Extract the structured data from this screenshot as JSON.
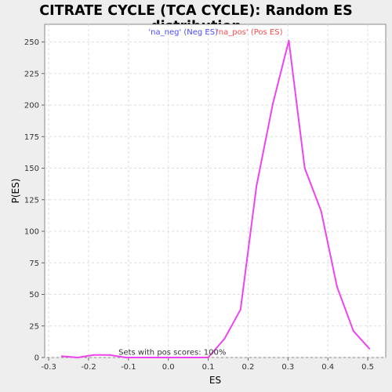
{
  "chart_data": {
    "type": "line",
    "title": "CITRATE CYCLE (TCA CYCLE): Random ES distribution",
    "xlabel": "ES",
    "ylabel": "P(ES)",
    "xlim": [
      -0.31,
      0.545
    ],
    "ylim": [
      0,
      264
    ],
    "x_ticks": [
      -0.3,
      -0.2,
      -0.1,
      0.0,
      0.1,
      0.2,
      0.3,
      0.4,
      0.5
    ],
    "x_tick_labels": [
      "-0.3",
      "-0.2",
      "-0.1",
      "0.0",
      "0.1",
      "0.2",
      "0.3",
      "0.4",
      "0.5"
    ],
    "y_ticks": [
      0,
      25,
      50,
      75,
      100,
      125,
      150,
      175,
      200,
      225,
      250
    ],
    "y_tick_labels": [
      "0",
      "25",
      "50",
      "75",
      "100",
      "125",
      "150",
      "175",
      "200",
      "225",
      "250"
    ],
    "grid": true,
    "legend_placement": "top-center",
    "series": [
      {
        "name": "'na_neg' (Neg ES)",
        "color": "#4a4aff",
        "x": [],
        "y": []
      },
      {
        "name": "'na_pos' (Pos ES)",
        "color": "#ff4a4a",
        "line_color": "#ee44ee",
        "x": [
          -0.267,
          -0.227,
          -0.187,
          -0.147,
          -0.107,
          -0.067,
          -0.027,
          0.013,
          0.053,
          0.1,
          0.141,
          0.181,
          0.221,
          0.262,
          0.302,
          0.342,
          0.383,
          0.423,
          0.464,
          0.504
        ],
        "y": [
          1,
          0,
          2,
          2,
          0,
          0,
          0,
          0,
          0,
          0,
          15,
          38,
          136,
          201,
          251,
          150,
          116,
          56,
          21,
          7
        ]
      }
    ],
    "annotations": [
      {
        "text": "Sets with pos scores: 100%",
        "x": -0.125,
        "y": 2
      }
    ]
  }
}
